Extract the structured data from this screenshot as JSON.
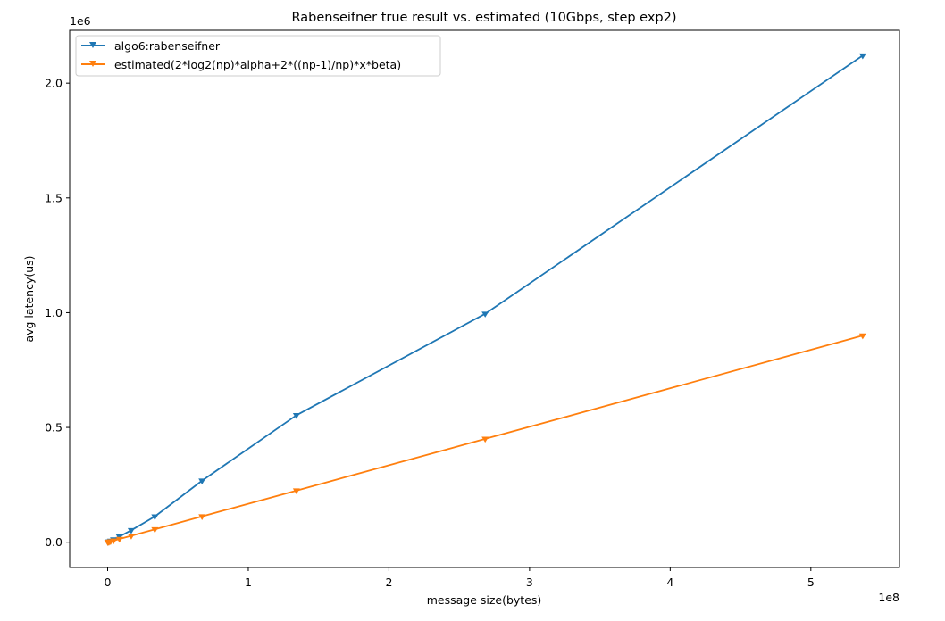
{
  "chart_data": {
    "type": "line",
    "title": "Rabenseifner true result vs. estimated (10Gbps, step exp2)",
    "xlabel": "message size(bytes)",
    "ylabel": "avg latency(us)",
    "x_offset_label": "1e8",
    "y_offset_label": "1e6",
    "x_scale_factor": 100000000,
    "y_scale_factor": 1000000,
    "xlim": [
      -27000000,
      563000000
    ],
    "ylim": [
      -110000,
      2230000
    ],
    "x_ticks": [
      0,
      100000000,
      200000000,
      300000000,
      400000000,
      500000000
    ],
    "x_tick_labels": [
      "0",
      "1",
      "2",
      "3",
      "4",
      "5"
    ],
    "y_ticks": [
      0,
      500000,
      1000000,
      1500000,
      2000000
    ],
    "y_tick_labels": [
      "0.0",
      "0.5",
      "1.0",
      "1.5",
      "2.0"
    ],
    "grid": false,
    "legend_position": "top-left",
    "x": [
      131072,
      262144,
      524288,
      1048576,
      2097152,
      4194304,
      8388608,
      16777216,
      33554432,
      67108864,
      134217728,
      268435456,
      536870912
    ],
    "series": [
      {
        "name": "algo6:rabenseifner",
        "color": "#1f77b4",
        "marker": "triangle-down",
        "values": [
          400,
          800,
          1500,
          3000,
          6000,
          12000,
          25000,
          52000,
          112000,
          268000,
          553000,
          995000,
          2120000
        ]
      },
      {
        "name": "estimated(2*log2(np)*alpha+2*((np-1)/np)*x*beta)",
        "color": "#ff7f0e",
        "marker": "triangle-down",
        "values": [
          220,
          440,
          880,
          1760,
          3500,
          7000,
          14000,
          28000,
          56000,
          112500,
          225000,
          450000,
          900000
        ]
      }
    ]
  }
}
